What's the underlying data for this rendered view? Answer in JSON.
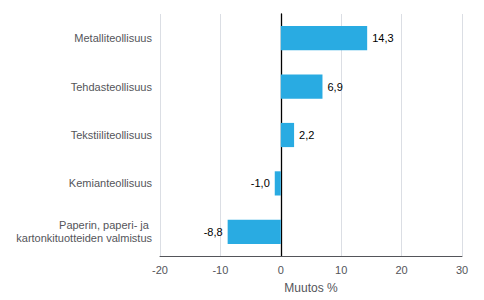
{
  "chart_data": {
    "type": "bar",
    "orientation": "horizontal",
    "categories": [
      "Paperin, paperi- ja kartonkituotteiden valmistus",
      "Kemianteollisuus",
      "Tekstiiliteollisuus",
      "Tehdasteollisuus",
      "Metalliteollisuus"
    ],
    "values": [
      -8.8,
      -1.0,
      2.2,
      6.9,
      14.3
    ],
    "value_labels": [
      "-8,8",
      "-1,0",
      "2,2",
      "6,9",
      "14,3"
    ],
    "data_labels": true,
    "color": "#29ABE2",
    "xlabel": "Muutos %",
    "xlim": [
      -20,
      30
    ],
    "xticks": [
      -20,
      -10,
      0,
      10,
      20,
      30
    ],
    "grid": true
  }
}
